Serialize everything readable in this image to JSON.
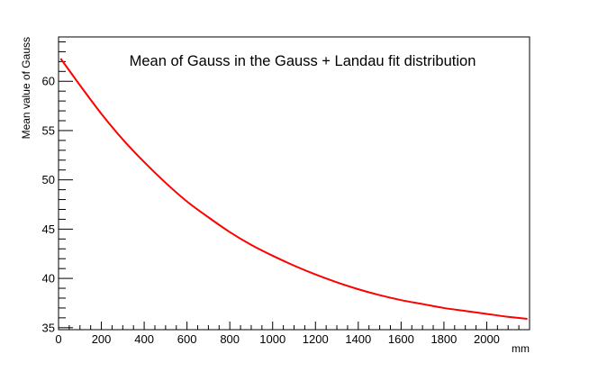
{
  "chart_data": {
    "type": "line",
    "title": "Mean of Gauss in the Gauss + Landau fit distribution",
    "xlabel": "mm",
    "ylabel": "Mean value of  Gauss",
    "xlim": [
      0,
      2200
    ],
    "ylim": [
      34.8,
      64.5
    ],
    "x_ticks": [
      0,
      200,
      400,
      600,
      800,
      1000,
      1200,
      1400,
      1600,
      1800,
      2000
    ],
    "y_ticks": [
      35,
      40,
      45,
      50,
      55,
      60
    ],
    "grid": false,
    "legend": "none",
    "series": [
      {
        "color": "#ff0000",
        "x": [
          10,
          100,
          200,
          300,
          400,
          500,
          600,
          700,
          800,
          900,
          1000,
          1100,
          1200,
          1300,
          1400,
          1500,
          1600,
          1700,
          1800,
          1900,
          2000,
          2100,
          2190
        ],
        "y": [
          62.3,
          59.6,
          56.7,
          54.1,
          51.8,
          49.7,
          47.8,
          46.2,
          44.7,
          43.4,
          42.3,
          41.3,
          40.4,
          39.6,
          38.9,
          38.3,
          37.8,
          37.4,
          37.0,
          36.7,
          36.4,
          36.1,
          35.9
        ]
      }
    ]
  }
}
